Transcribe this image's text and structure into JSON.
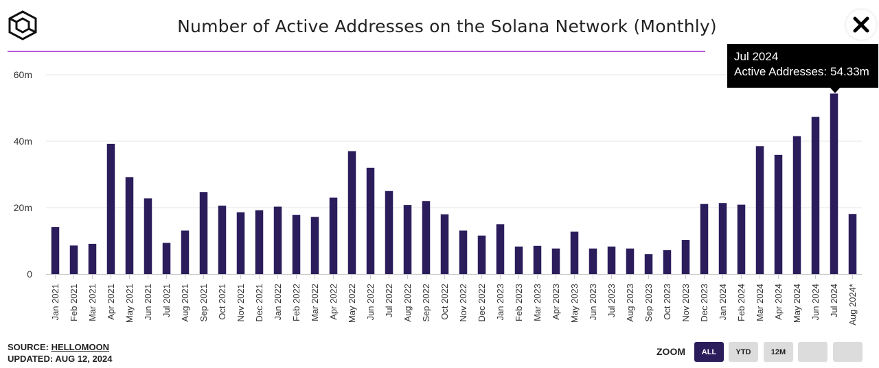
{
  "header": {
    "title": "Number of Active Addresses on the Solana Network (Monthly)"
  },
  "tooltip": {
    "month": "Jul 2024",
    "label": "Active Addresses:",
    "value": "54.33m"
  },
  "footer": {
    "source_label": "SOURCE:",
    "source_name": "HELLOMOON",
    "updated": "UPDATED: AUG 12, 2024"
  },
  "zoom": {
    "label": "ZOOM",
    "buttons": [
      {
        "label": "ALL",
        "active": true
      },
      {
        "label": "YTD",
        "active": false
      },
      {
        "label": "12M",
        "active": false
      },
      {
        "label": "",
        "active": false
      },
      {
        "label": "",
        "active": false
      }
    ]
  },
  "colors": {
    "bar": "#2b1d5c",
    "accent_rule": "#b65bd8",
    "tooltip_bg": "#000000",
    "gridline": "#e6e6e6"
  },
  "icons": {
    "logo": "cube-logo-icon",
    "close": "close-icon"
  },
  "chart_data": {
    "type": "bar",
    "title": "Number of Active Addresses on the Solana Network (Monthly)",
    "xlabel": "",
    "ylabel": "",
    "ylim": [
      0,
      60
    ],
    "y_ticks": [
      0,
      20,
      40,
      60
    ],
    "y_tick_labels": [
      "0",
      "20m",
      "40m",
      "60m"
    ],
    "grid": true,
    "legend": "none",
    "categories": [
      "Jan 2021",
      "Feb 2021",
      "Mar 2021",
      "Apr 2021",
      "May 2021",
      "Jun 2021",
      "Jul 2021",
      "Aug 2021",
      "Sep 2021",
      "Oct 2021",
      "Nov 2021",
      "Dec 2021",
      "Jan 2022",
      "Feb 2022",
      "Mar 2022",
      "Apr 2022",
      "May 2022",
      "Jun 2022",
      "Jul 2022",
      "Aug 2022",
      "Sep 2022",
      "Oct 2022",
      "Nov 2022",
      "Dec 2022",
      "Jan 2023",
      "Feb 2023",
      "Mar 2023",
      "Apr 2023",
      "May 2023",
      "Jun 2023",
      "Jul 2023",
      "Aug 2023",
      "Sep 2023",
      "Oct 2023",
      "Nov 2023",
      "Dec 2023",
      "Jan 2024",
      "Feb 2024",
      "Mar 2024",
      "Apr 2024",
      "May 2024",
      "Jun 2024",
      "Jul 2024",
      "Aug 2024*"
    ],
    "series": [
      {
        "values": [
          14.2,
          8.6,
          9.1,
          39.2,
          29.2,
          22.8,
          9.4,
          13.1,
          24.7,
          20.6,
          18.6,
          19.2,
          20.3,
          17.8,
          17.2,
          23.0,
          37.0,
          32.0,
          25.0,
          20.8,
          22.0,
          18.0,
          13.1,
          11.6,
          15.0,
          8.3,
          8.5,
          7.7,
          12.8,
          7.7,
          8.3,
          7.7,
          6.0,
          7.2,
          10.3,
          21.1,
          21.4,
          20.9,
          38.5,
          35.9,
          41.5,
          47.3,
          54.33,
          18.1
        ]
      }
    ]
  }
}
